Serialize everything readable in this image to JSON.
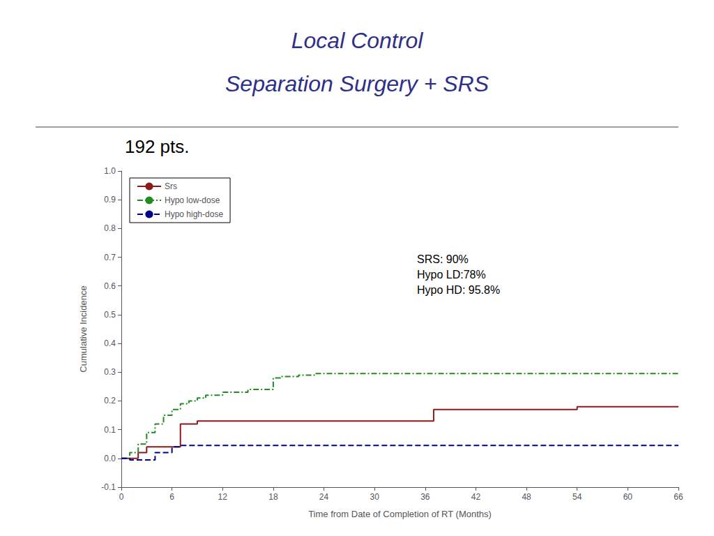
{
  "chart_data": {
    "type": "line",
    "title": "Local Control\nSeparation Surgery + SRS",
    "title_color": "#2E2E8B",
    "subtitle": "192 pts.",
    "x_label": "Time from Date of Completion of RT (Months)",
    "y_label": "Cumulative Incidence",
    "annotation": "SRS: 90%\nHypo LD:78%\nHypo HD: 95.8%",
    "xlim": [
      0,
      66
    ],
    "xticks": [
      0,
      6,
      12,
      18,
      24,
      30,
      36,
      42,
      48,
      54,
      60,
      66
    ],
    "ylim": [
      -0.1,
      1.0
    ],
    "yticks": [
      -0.1,
      {
        "value": 0,
        "label": "0.0"
      },
      0.1,
      0.2,
      0.3,
      0.4,
      0.5,
      0.6,
      0.7,
      0.8,
      0.9,
      {
        "value": 1.0,
        "label": "1.0"
      }
    ],
    "grid": false,
    "legend": "upper left",
    "series": [
      {
        "name": "Srs",
        "color": "#8B1A1A",
        "line_style": "solid",
        "x": [
          0,
          2,
          2,
          3,
          3,
          7,
          7,
          9,
          9,
          37,
          37,
          54,
          54,
          66
        ],
        "values": [
          0,
          0,
          0.02,
          0.02,
          0.04,
          0.04,
          0.12,
          0.12,
          0.13,
          0.13,
          0.17,
          0.17,
          0.18,
          0.18
        ]
      },
      {
        "name": "Hypo low-dose",
        "color": "#228B22",
        "line_style": "dashdot",
        "x": [
          0,
          1,
          1,
          2,
          2,
          3,
          3,
          4,
          4,
          5,
          5,
          6,
          6,
          7,
          7,
          8,
          8,
          9,
          9,
          10,
          10,
          12,
          12,
          15,
          15,
          18,
          18,
          19,
          19,
          21,
          21,
          23,
          23,
          24,
          24,
          66
        ],
        "values": [
          0,
          0,
          0.02,
          0.02,
          0.05,
          0.05,
          0.09,
          0.09,
          0.12,
          0.12,
          0.15,
          0.15,
          0.17,
          0.17,
          0.19,
          0.19,
          0.2,
          0.2,
          0.21,
          0.21,
          0.22,
          0.22,
          0.23,
          0.23,
          0.24,
          0.24,
          0.28,
          0.28,
          0.285,
          0.285,
          0.29,
          0.29,
          0.295,
          0.295,
          0.295,
          0.295
        ]
      },
      {
        "name": "Hypo high-dose",
        "color": "#00008B",
        "line_style": "dashed",
        "x": [
          0,
          1,
          1,
          4,
          4,
          6,
          6,
          7,
          7,
          8,
          8,
          66
        ],
        "values": [
          0,
          0,
          -0.005,
          -0.005,
          0.02,
          0.02,
          0.04,
          0.04,
          0.045,
          0.045,
          0.045,
          0.045
        ]
      }
    ]
  }
}
